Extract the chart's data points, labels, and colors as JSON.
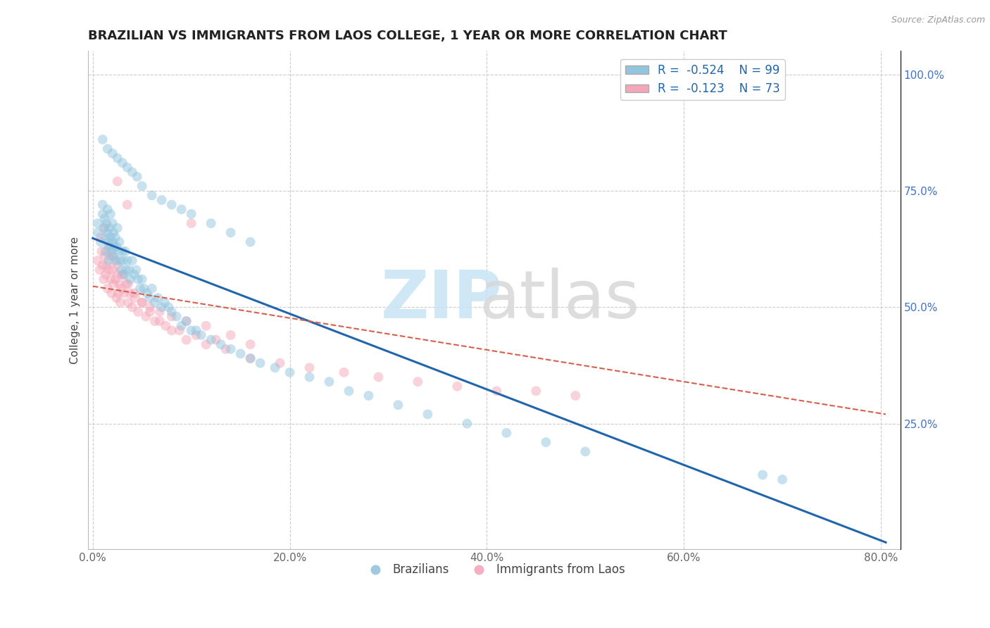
{
  "title": "BRAZILIAN VS IMMIGRANTS FROM LAOS COLLEGE, 1 YEAR OR MORE CORRELATION CHART",
  "source": "Source: ZipAtlas.com",
  "ylabel": "College, 1 year or more",
  "xlim": [
    -0.005,
    0.82
  ],
  "ylim": [
    -0.02,
    1.05
  ],
  "xtick_labels": [
    "0.0%",
    "20.0%",
    "40.0%",
    "60.0%",
    "80.0%"
  ],
  "xtick_values": [
    0.0,
    0.2,
    0.4,
    0.6,
    0.8
  ],
  "right_ytick_labels": [
    "25.0%",
    "50.0%",
    "75.0%",
    "100.0%"
  ],
  "right_ytick_values": [
    0.25,
    0.5,
    0.75,
    1.0
  ],
  "legend_R1": "R =  -0.524",
  "legend_N1": "N = 99",
  "legend_R2": "R =  -0.123",
  "legend_N2": "N = 73",
  "color_blue": "#92c5de",
  "color_pink": "#f4a7b9",
  "color_blue_line": "#2166ac",
  "color_pink_line": "#d6604d",
  "series1_label": "Brazilians",
  "series2_label": "Immigrants from Laos",
  "background_color": "#ffffff",
  "grid_color": "#cccccc",
  "title_fontsize": 13,
  "axis_fontsize": 11,
  "tick_fontsize": 11,
  "legend_fontsize": 12,
  "scatter_alpha": 0.5,
  "scatter_size": 100,
  "blue_scatter_x": [
    0.005,
    0.005,
    0.008,
    0.01,
    0.01,
    0.011,
    0.012,
    0.013,
    0.013,
    0.014,
    0.015,
    0.015,
    0.016,
    0.016,
    0.017,
    0.017,
    0.018,
    0.018,
    0.019,
    0.02,
    0.02,
    0.021,
    0.021,
    0.022,
    0.023,
    0.024,
    0.024,
    0.025,
    0.026,
    0.027,
    0.028,
    0.029,
    0.03,
    0.031,
    0.032,
    0.033,
    0.034,
    0.035,
    0.037,
    0.038,
    0.04,
    0.042,
    0.044,
    0.046,
    0.048,
    0.05,
    0.052,
    0.055,
    0.058,
    0.06,
    0.063,
    0.066,
    0.07,
    0.073,
    0.077,
    0.08,
    0.085,
    0.09,
    0.095,
    0.1,
    0.105,
    0.11,
    0.12,
    0.13,
    0.14,
    0.15,
    0.16,
    0.17,
    0.185,
    0.2,
    0.22,
    0.24,
    0.26,
    0.28,
    0.31,
    0.34,
    0.38,
    0.42,
    0.46,
    0.5,
    0.01,
    0.015,
    0.02,
    0.025,
    0.03,
    0.035,
    0.04,
    0.045,
    0.05,
    0.06,
    0.07,
    0.08,
    0.09,
    0.1,
    0.12,
    0.14,
    0.16,
    0.7,
    0.68
  ],
  "blue_scatter_y": [
    0.66,
    0.68,
    0.64,
    0.7,
    0.72,
    0.67,
    0.69,
    0.65,
    0.62,
    0.68,
    0.71,
    0.66,
    0.64,
    0.6,
    0.67,
    0.63,
    0.7,
    0.65,
    0.62,
    0.68,
    0.64,
    0.66,
    0.61,
    0.63,
    0.65,
    0.6,
    0.63,
    0.67,
    0.62,
    0.64,
    0.6,
    0.58,
    0.62,
    0.6,
    0.57,
    0.62,
    0.58,
    0.6,
    0.58,
    0.56,
    0.6,
    0.57,
    0.58,
    0.56,
    0.54,
    0.56,
    0.54,
    0.53,
    0.52,
    0.54,
    0.51,
    0.52,
    0.5,
    0.51,
    0.5,
    0.49,
    0.48,
    0.46,
    0.47,
    0.45,
    0.45,
    0.44,
    0.43,
    0.42,
    0.41,
    0.4,
    0.39,
    0.38,
    0.37,
    0.36,
    0.35,
    0.34,
    0.32,
    0.31,
    0.29,
    0.27,
    0.25,
    0.23,
    0.21,
    0.19,
    0.86,
    0.84,
    0.83,
    0.82,
    0.81,
    0.8,
    0.79,
    0.78,
    0.76,
    0.74,
    0.73,
    0.72,
    0.71,
    0.7,
    0.68,
    0.66,
    0.64,
    0.13,
    0.14
  ],
  "pink_scatter_x": [
    0.005,
    0.007,
    0.009,
    0.01,
    0.011,
    0.012,
    0.013,
    0.014,
    0.015,
    0.016,
    0.017,
    0.018,
    0.019,
    0.02,
    0.021,
    0.022,
    0.023,
    0.024,
    0.025,
    0.026,
    0.027,
    0.028,
    0.029,
    0.03,
    0.032,
    0.034,
    0.036,
    0.038,
    0.04,
    0.043,
    0.046,
    0.05,
    0.054,
    0.058,
    0.063,
    0.068,
    0.074,
    0.08,
    0.088,
    0.095,
    0.105,
    0.115,
    0.125,
    0.14,
    0.16,
    0.008,
    0.012,
    0.016,
    0.02,
    0.025,
    0.03,
    0.036,
    0.042,
    0.05,
    0.058,
    0.068,
    0.08,
    0.095,
    0.115,
    0.135,
    0.16,
    0.19,
    0.22,
    0.255,
    0.29,
    0.33,
    0.37,
    0.41,
    0.45,
    0.49,
    0.025,
    0.035,
    0.1
  ],
  "pink_scatter_y": [
    0.6,
    0.58,
    0.62,
    0.59,
    0.56,
    0.61,
    0.57,
    0.59,
    0.54,
    0.58,
    0.61,
    0.56,
    0.53,
    0.58,
    0.55,
    0.6,
    0.56,
    0.52,
    0.57,
    0.53,
    0.55,
    0.51,
    0.54,
    0.57,
    0.53,
    0.55,
    0.51,
    0.53,
    0.5,
    0.52,
    0.49,
    0.51,
    0.48,
    0.5,
    0.47,
    0.49,
    0.46,
    0.48,
    0.45,
    0.47,
    0.44,
    0.46,
    0.43,
    0.44,
    0.42,
    0.65,
    0.67,
    0.63,
    0.61,
    0.59,
    0.57,
    0.55,
    0.53,
    0.51,
    0.49,
    0.47,
    0.45,
    0.43,
    0.42,
    0.41,
    0.39,
    0.38,
    0.37,
    0.36,
    0.35,
    0.34,
    0.33,
    0.32,
    0.32,
    0.31,
    0.77,
    0.72,
    0.68
  ],
  "blue_line_x": [
    0.0,
    0.805
  ],
  "blue_line_y": [
    0.648,
    -0.005
  ],
  "pink_line_x": [
    0.0,
    0.805
  ],
  "pink_line_y": [
    0.545,
    0.27
  ]
}
